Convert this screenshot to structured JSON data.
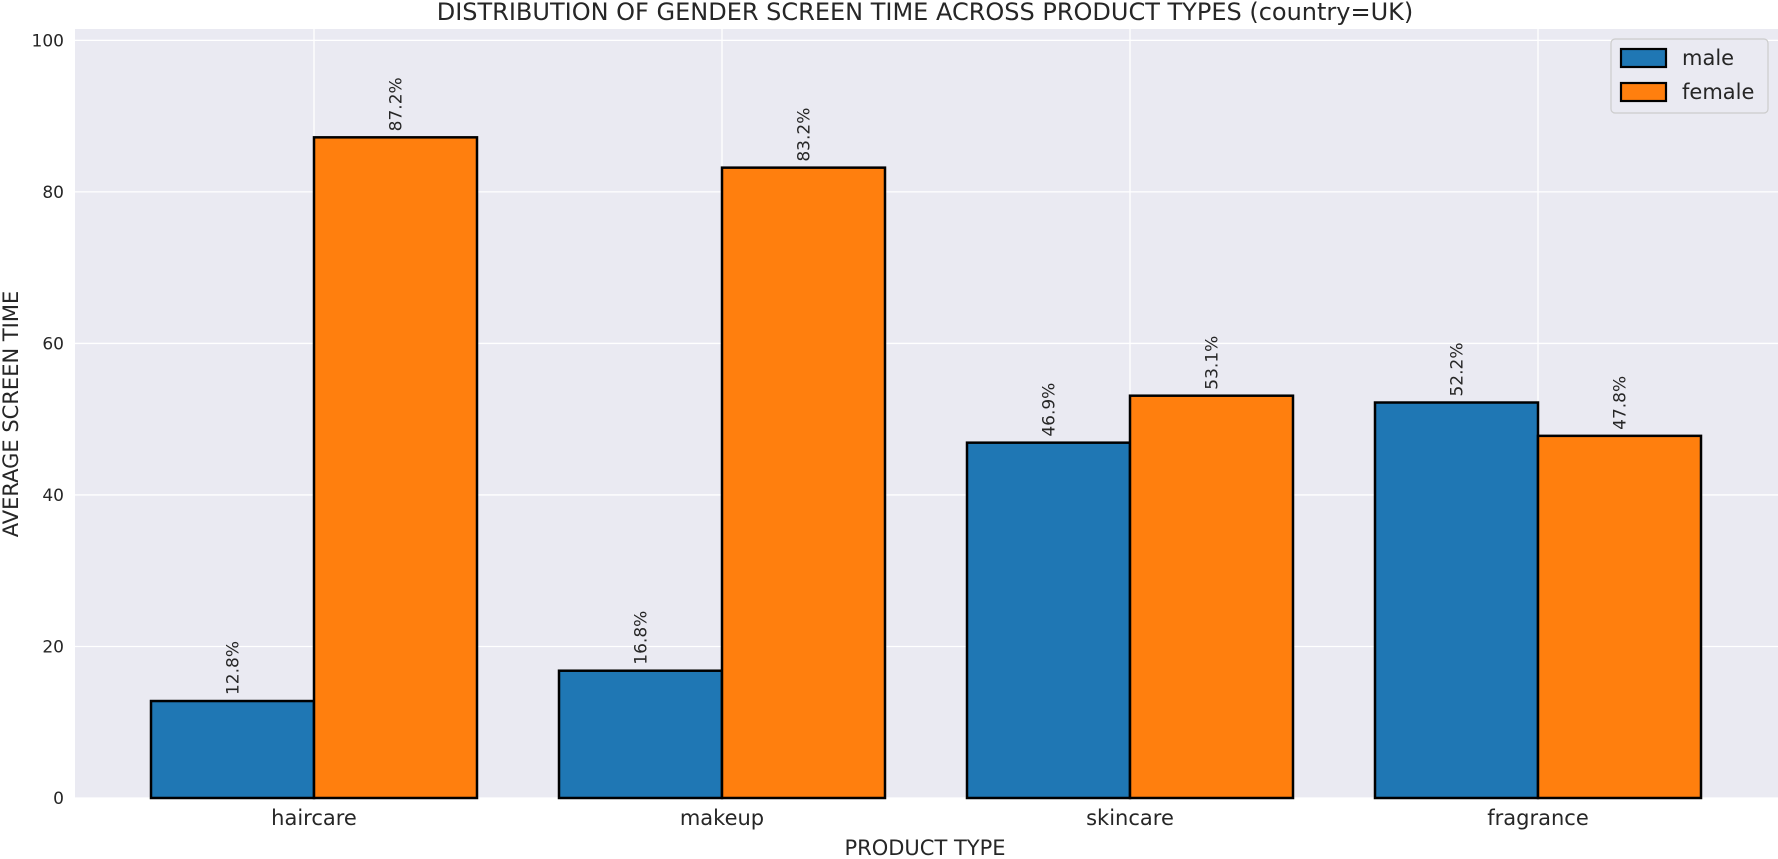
{
  "chart_data": {
    "type": "bar",
    "title": "DISTRIBUTION OF GENDER SCREEN TIME ACROSS PRODUCT TYPES (country=UK)",
    "xlabel": "PRODUCT TYPE",
    "ylabel": "AVERAGE SCREEN TIME",
    "categories": [
      "haircare",
      "makeup",
      "skincare",
      "fragrance"
    ],
    "series": [
      {
        "name": "male",
        "values": [
          12.8,
          16.8,
          46.9,
          52.2
        ],
        "labels": [
          "12.8%",
          "16.8%",
          "46.9%",
          "52.2%"
        ],
        "color": "#1f77b4"
      },
      {
        "name": "female",
        "values": [
          87.2,
          83.2,
          53.1,
          47.8
        ],
        "labels": [
          "87.2%",
          "83.2%",
          "53.1%",
          "47.8%"
        ],
        "color": "#ff7f0e"
      }
    ],
    "ylim": [
      0,
      101.5
    ],
    "yticks": [
      0,
      20,
      40,
      60,
      80,
      100
    ],
    "grid": true,
    "legend_position": "top-right",
    "background_color": "#eaeaf2",
    "grid_color": "#ffffff",
    "bar_edge_color": "#000000"
  }
}
